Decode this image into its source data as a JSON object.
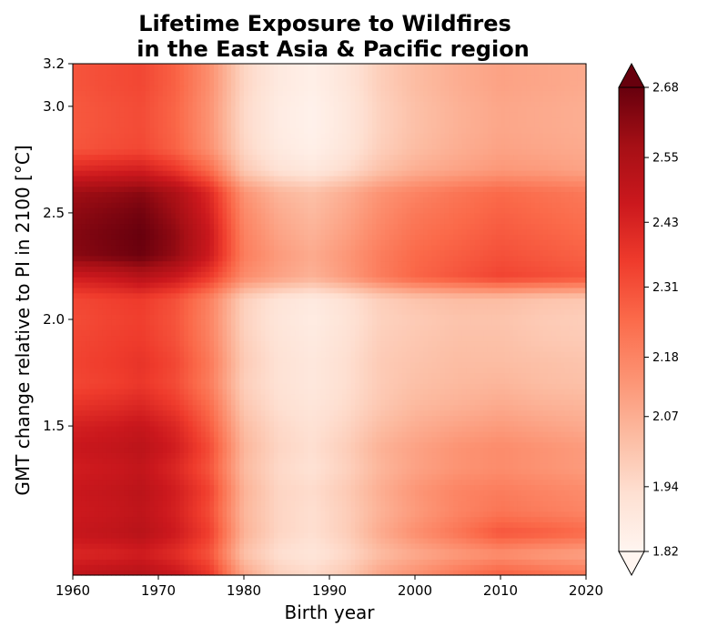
{
  "chart_data": {
    "type": "heatmap",
    "title_line1": "Lifetime Exposure to Wildfires",
    "title_line2": "in the East Asia & Pacific region",
    "xlabel": "Birth year",
    "ylabel": "GMT change relative to PI in 2100 [°C]",
    "xlim": [
      1960,
      2020
    ],
    "ylim": [
      0.8,
      3.2
    ],
    "xticks": [
      1960,
      1970,
      1980,
      1990,
      2000,
      2010,
      2020
    ],
    "xtick_labels": [
      "1960",
      "1970",
      "1980",
      "1990",
      "2000",
      "2010",
      "2020"
    ],
    "yticks": [
      1.5,
      2.0,
      2.5,
      3.0,
      3.2
    ],
    "ytick_labels": [
      "1.5",
      "2.0",
      "2.5",
      "3.0",
      "3.2"
    ],
    "colorbar": {
      "colormap": "Reds",
      "min": 1.82,
      "max": 2.68,
      "extend": "both",
      "ticks": [
        1.82,
        1.94,
        2.07,
        2.18,
        2.31,
        2.43,
        2.55,
        2.68
      ],
      "tick_labels": [
        "1.82",
        "1.94",
        "2.07",
        "2.18",
        "2.31",
        "2.43",
        "2.55",
        "2.68"
      ],
      "colors": [
        "#fff5f0",
        "#fee0d2",
        "#fcbba1",
        "#fc9272",
        "#fb6a4a",
        "#ef3b2c",
        "#cb181d",
        "#a50f15",
        "#67000d"
      ]
    },
    "x": [
      1960,
      1965,
      1968,
      1972,
      1976,
      1980,
      1984,
      1988,
      1992,
      1996,
      2000,
      2005,
      2010,
      2015,
      2020
    ],
    "y": [
      0.8,
      0.9,
      1.0,
      1.1,
      1.2,
      1.3,
      1.4,
      1.5,
      1.6,
      1.7,
      1.8,
      1.9,
      2.0,
      2.1,
      2.2,
      2.3,
      2.4,
      2.5,
      2.6,
      2.7,
      2.8,
      2.9,
      3.0,
      3.1,
      3.2
    ],
    "z": [
      [
        2.5,
        2.52,
        2.53,
        2.48,
        2.38,
        2.1,
        1.98,
        1.95,
        2.0,
        2.1,
        2.15,
        2.22,
        2.28,
        2.25,
        2.22
      ],
      [
        2.42,
        2.43,
        2.45,
        2.4,
        2.3,
        2.02,
        1.93,
        1.9,
        1.95,
        2.03,
        2.08,
        2.12,
        2.15,
        2.12,
        2.1
      ],
      [
        2.48,
        2.5,
        2.52,
        2.46,
        2.35,
        2.06,
        1.96,
        1.93,
        1.98,
        2.08,
        2.15,
        2.22,
        2.3,
        2.28,
        2.25
      ],
      [
        2.46,
        2.48,
        2.5,
        2.44,
        2.32,
        2.05,
        1.96,
        1.93,
        1.98,
        2.06,
        2.12,
        2.18,
        2.22,
        2.2,
        2.18
      ],
      [
        2.47,
        2.49,
        2.51,
        2.45,
        2.34,
        2.06,
        1.96,
        1.94,
        1.99,
        2.07,
        2.13,
        2.18,
        2.2,
        2.18,
        2.16
      ],
      [
        2.45,
        2.47,
        2.49,
        2.42,
        2.3,
        2.04,
        1.95,
        1.92,
        1.97,
        2.05,
        2.1,
        2.14,
        2.16,
        2.14,
        2.12
      ],
      [
        2.47,
        2.49,
        2.51,
        2.45,
        2.32,
        2.05,
        1.96,
        1.93,
        1.98,
        2.06,
        2.1,
        2.14,
        2.16,
        2.14,
        2.12
      ],
      [
        2.44,
        2.46,
        2.48,
        2.42,
        2.28,
        2.03,
        1.95,
        1.92,
        1.96,
        2.03,
        2.07,
        2.1,
        2.12,
        2.1,
        2.08
      ],
      [
        2.38,
        2.4,
        2.42,
        2.36,
        2.24,
        2.0,
        1.93,
        1.9,
        1.94,
        2.0,
        2.04,
        2.06,
        2.08,
        2.06,
        2.05
      ],
      [
        2.33,
        2.35,
        2.37,
        2.32,
        2.2,
        1.98,
        1.92,
        1.89,
        1.93,
        1.99,
        2.02,
        2.04,
        2.05,
        2.03,
        2.02
      ],
      [
        2.34,
        2.36,
        2.38,
        2.33,
        2.21,
        1.99,
        1.92,
        1.89,
        1.93,
        1.99,
        2.01,
        2.03,
        2.03,
        2.02,
        2.01
      ],
      [
        2.33,
        2.35,
        2.36,
        2.31,
        2.19,
        1.98,
        1.91,
        1.88,
        1.92,
        1.98,
        2.0,
        2.02,
        2.02,
        2.0,
        1.99
      ],
      [
        2.32,
        2.34,
        2.35,
        2.3,
        2.18,
        1.97,
        1.9,
        1.87,
        1.91,
        1.97,
        1.99,
        2.01,
        2.01,
        1.99,
        1.98
      ],
      [
        2.33,
        2.35,
        2.36,
        2.31,
        2.19,
        1.98,
        1.91,
        1.88,
        1.92,
        1.98,
        2.01,
        2.03,
        2.03,
        2.01,
        2.0
      ],
      [
        2.45,
        2.48,
        2.52,
        2.47,
        2.36,
        2.16,
        2.1,
        2.06,
        2.12,
        2.2,
        2.26,
        2.3,
        2.34,
        2.32,
        2.3
      ],
      [
        2.62,
        2.65,
        2.67,
        2.6,
        2.46,
        2.2,
        2.12,
        2.08,
        2.13,
        2.2,
        2.25,
        2.28,
        2.31,
        2.29,
        2.27
      ],
      [
        2.63,
        2.66,
        2.68,
        2.61,
        2.47,
        2.19,
        2.1,
        2.06,
        2.11,
        2.18,
        2.23,
        2.26,
        2.29,
        2.27,
        2.25
      ],
      [
        2.61,
        2.64,
        2.66,
        2.58,
        2.44,
        2.17,
        2.08,
        2.04,
        2.09,
        2.16,
        2.21,
        2.24,
        2.27,
        2.25,
        2.23
      ],
      [
        2.58,
        2.6,
        2.62,
        2.55,
        2.41,
        2.14,
        2.05,
        2.02,
        2.07,
        2.14,
        2.18,
        2.22,
        2.25,
        2.23,
        2.21
      ],
      [
        2.42,
        2.44,
        2.45,
        2.38,
        2.25,
        2.0,
        1.92,
        1.89,
        1.94,
        2.02,
        2.07,
        2.1,
        2.13,
        2.12,
        2.1
      ],
      [
        2.3,
        2.32,
        2.33,
        2.27,
        2.15,
        1.96,
        1.88,
        1.85,
        1.9,
        1.98,
        2.03,
        2.07,
        2.1,
        2.09,
        2.08
      ],
      [
        2.29,
        2.31,
        2.32,
        2.26,
        2.14,
        1.95,
        1.87,
        1.84,
        1.89,
        1.97,
        2.02,
        2.06,
        2.09,
        2.08,
        2.07
      ],
      [
        2.29,
        2.31,
        2.32,
        2.26,
        2.14,
        1.95,
        1.87,
        1.84,
        1.89,
        1.97,
        2.02,
        2.06,
        2.09,
        2.08,
        2.07
      ],
      [
        2.3,
        2.32,
        2.33,
        2.27,
        2.15,
        1.96,
        1.88,
        1.85,
        1.9,
        1.98,
        2.03,
        2.07,
        2.1,
        2.09,
        2.08
      ],
      [
        2.3,
        2.32,
        2.33,
        2.27,
        2.15,
        1.96,
        1.88,
        1.85,
        1.9,
        1.98,
        2.03,
        2.07,
        2.1,
        2.09,
        2.08
      ]
    ]
  }
}
